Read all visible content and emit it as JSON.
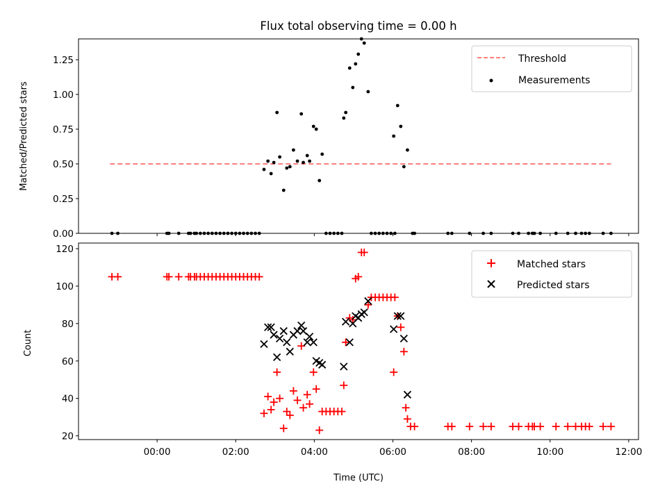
{
  "chart_data": [
    {
      "type": "scatter",
      "title": "Flux total observing time = 0.00 h",
      "ylabel": "Matched/Predicted stars",
      "xlim": [
        -2.0,
        12.25
      ],
      "ylim": [
        0,
        1.4
      ],
      "yticks": [
        0.0,
        0.25,
        0.5,
        0.75,
        1.0,
        1.25
      ],
      "ytick_labels": [
        "0.00",
        "0.25",
        "0.50",
        "0.75",
        "1.00",
        "1.25"
      ],
      "legend": {
        "position": "top-right",
        "entries": [
          "Threshold",
          "Measurements"
        ]
      },
      "series": [
        {
          "name": "Threshold",
          "style": "dashed-line",
          "color": "#ff7f7f",
          "points": [
            [
              -1.2,
              0.5
            ],
            [
              11.55,
              0.5
            ]
          ]
        },
        {
          "name": "Measurements",
          "style": "dot",
          "color": "#000000",
          "points": [
            [
              -1.15,
              0
            ],
            [
              -1.0,
              0
            ],
            [
              0.25,
              0
            ],
            [
              0.3,
              0
            ],
            [
              0.55,
              0
            ],
            [
              0.8,
              0
            ],
            [
              0.85,
              0
            ],
            [
              0.95,
              0
            ],
            [
              1.0,
              0
            ],
            [
              1.1,
              0
            ],
            [
              1.2,
              0
            ],
            [
              1.3,
              0
            ],
            [
              1.4,
              0
            ],
            [
              1.5,
              0
            ],
            [
              1.6,
              0
            ],
            [
              1.7,
              0
            ],
            [
              1.8,
              0
            ],
            [
              1.9,
              0
            ],
            [
              2.0,
              0
            ],
            [
              2.1,
              0
            ],
            [
              2.2,
              0
            ],
            [
              2.3,
              0
            ],
            [
              2.4,
              0
            ],
            [
              2.5,
              0
            ],
            [
              2.6,
              0
            ],
            [
              2.72,
              0.46
            ],
            [
              2.82,
              0.52
            ],
            [
              2.9,
              0.43
            ],
            [
              2.97,
              0.51
            ],
            [
              3.05,
              0.87
            ],
            [
              3.12,
              0.55
            ],
            [
              3.22,
              0.31
            ],
            [
              3.3,
              0.47
            ],
            [
              3.38,
              0.48
            ],
            [
              3.47,
              0.6
            ],
            [
              3.57,
              0.52
            ],
            [
              3.67,
              0.86
            ],
            [
              3.72,
              0.51
            ],
            [
              3.82,
              0.56
            ],
            [
              3.88,
              0.52
            ],
            [
              3.98,
              0.77
            ],
            [
              4.05,
              0.75
            ],
            [
              4.13,
              0.38
            ],
            [
              4.2,
              0.57
            ],
            [
              4.3,
              0
            ],
            [
              4.4,
              0
            ],
            [
              4.5,
              0
            ],
            [
              4.6,
              0
            ],
            [
              4.7,
              0
            ],
            [
              4.75,
              0.83
            ],
            [
              4.8,
              0.87
            ],
            [
              4.9,
              1.19
            ],
            [
              4.98,
              1.05
            ],
            [
              5.05,
              1.22
            ],
            [
              5.12,
              1.29
            ],
            [
              5.2,
              1.4
            ],
            [
              5.27,
              1.37
            ],
            [
              5.37,
              1.02
            ],
            [
              5.45,
              0
            ],
            [
              5.55,
              0
            ],
            [
              5.65,
              0
            ],
            [
              5.75,
              0
            ],
            [
              5.85,
              0
            ],
            [
              5.95,
              0
            ],
            [
              6.05,
              0
            ],
            [
              6.02,
              0.7
            ],
            [
              6.12,
              0.92
            ],
            [
              6.2,
              0.77
            ],
            [
              6.28,
              0.48
            ],
            [
              6.37,
              0.6
            ],
            [
              6.5,
              0
            ],
            [
              6.55,
              0
            ],
            [
              7.4,
              0
            ],
            [
              7.5,
              0
            ],
            [
              7.95,
              0
            ],
            [
              8.3,
              0
            ],
            [
              8.5,
              0
            ],
            [
              9.05,
              0
            ],
            [
              9.2,
              0
            ],
            [
              9.45,
              0
            ],
            [
              9.55,
              0
            ],
            [
              9.6,
              0
            ],
            [
              9.75,
              0
            ],
            [
              10.15,
              0
            ],
            [
              10.45,
              0
            ],
            [
              10.65,
              0
            ],
            [
              10.8,
              0
            ],
            [
              10.9,
              0
            ],
            [
              11.0,
              0
            ],
            [
              11.35,
              0
            ],
            [
              11.55,
              0
            ]
          ]
        }
      ]
    },
    {
      "type": "scatter",
      "xlabel": "Time (UTC)",
      "ylabel": "Count",
      "xlim": [
        -2.0,
        12.25
      ],
      "ylim": [
        18,
        123
      ],
      "xticks": [
        0,
        2,
        4,
        6,
        8,
        10,
        12
      ],
      "xtick_labels": [
        "00:00",
        "02:00",
        "04:00",
        "06:00",
        "08:00",
        "10:00",
        "12:00"
      ],
      "yticks": [
        20,
        40,
        60,
        80,
        100,
        120
      ],
      "ytick_labels": [
        "20",
        "40",
        "60",
        "80",
        "100",
        "120"
      ],
      "legend": {
        "position": "top-right",
        "entries": [
          "Matched stars",
          "Predicted stars"
        ]
      },
      "series": [
        {
          "name": "Matched stars",
          "style": "plus",
          "color": "#ff0000",
          "points": [
            [
              -1.15,
              105
            ],
            [
              -1.0,
              105
            ],
            [
              0.25,
              105
            ],
            [
              0.3,
              105
            ],
            [
              0.55,
              105
            ],
            [
              0.8,
              105
            ],
            [
              0.85,
              105
            ],
            [
              0.95,
              105
            ],
            [
              1.0,
              105
            ],
            [
              1.1,
              105
            ],
            [
              1.2,
              105
            ],
            [
              1.3,
              105
            ],
            [
              1.4,
              105
            ],
            [
              1.5,
              105
            ],
            [
              1.6,
              105
            ],
            [
              1.7,
              105
            ],
            [
              1.8,
              105
            ],
            [
              1.9,
              105
            ],
            [
              2.0,
              105
            ],
            [
              2.1,
              105
            ],
            [
              2.2,
              105
            ],
            [
              2.3,
              105
            ],
            [
              2.4,
              105
            ],
            [
              2.5,
              105
            ],
            [
              2.6,
              105
            ],
            [
              2.72,
              32
            ],
            [
              2.82,
              41
            ],
            [
              2.9,
              34
            ],
            [
              2.97,
              38
            ],
            [
              3.05,
              54
            ],
            [
              3.12,
              40
            ],
            [
              3.22,
              24
            ],
            [
              3.3,
              33
            ],
            [
              3.38,
              31
            ],
            [
              3.47,
              44
            ],
            [
              3.57,
              39
            ],
            [
              3.67,
              68
            ],
            [
              3.72,
              35
            ],
            [
              3.82,
              42
            ],
            [
              3.88,
              37
            ],
            [
              3.98,
              54
            ],
            [
              4.05,
              45
            ],
            [
              4.13,
              23
            ],
            [
              4.2,
              33
            ],
            [
              4.3,
              33
            ],
            [
              4.4,
              33
            ],
            [
              4.5,
              33
            ],
            [
              4.6,
              33
            ],
            [
              4.7,
              33
            ],
            [
              4.75,
              47
            ],
            [
              4.8,
              70
            ],
            [
              4.9,
              83
            ],
            [
              4.98,
              82
            ],
            [
              5.05,
              104
            ],
            [
              5.12,
              105
            ],
            [
              5.2,
              118
            ],
            [
              5.27,
              118
            ],
            [
              5.37,
              90
            ],
            [
              5.45,
              94
            ],
            [
              5.55,
              94
            ],
            [
              5.65,
              94
            ],
            [
              5.75,
              94
            ],
            [
              5.85,
              94
            ],
            [
              5.95,
              94
            ],
            [
              6.05,
              94
            ],
            [
              6.02,
              54
            ],
            [
              6.12,
              84
            ],
            [
              6.2,
              78
            ],
            [
              6.28,
              65
            ],
            [
              6.33,
              35
            ],
            [
              6.37,
              29
            ],
            [
              6.45,
              25
            ],
            [
              6.55,
              25
            ],
            [
              7.4,
              25
            ],
            [
              7.5,
              25
            ],
            [
              7.95,
              25
            ],
            [
              8.3,
              25
            ],
            [
              8.5,
              25
            ],
            [
              9.05,
              25
            ],
            [
              9.2,
              25
            ],
            [
              9.45,
              25
            ],
            [
              9.55,
              25
            ],
            [
              9.6,
              25
            ],
            [
              9.75,
              25
            ],
            [
              10.15,
              25
            ],
            [
              10.45,
              25
            ],
            [
              10.65,
              25
            ],
            [
              10.8,
              25
            ],
            [
              10.9,
              25
            ],
            [
              11.0,
              25
            ],
            [
              11.35,
              25
            ],
            [
              11.55,
              25
            ]
          ]
        },
        {
          "name": "Predicted stars",
          "style": "x",
          "color": "#000000",
          "points": [
            [
              2.72,
              69
            ],
            [
              2.82,
              78
            ],
            [
              2.9,
              78
            ],
            [
              2.97,
              74
            ],
            [
              3.05,
              62
            ],
            [
              3.12,
              72
            ],
            [
              3.22,
              76
            ],
            [
              3.3,
              70
            ],
            [
              3.38,
              65
            ],
            [
              3.47,
              74
            ],
            [
              3.57,
              76
            ],
            [
              3.67,
              79
            ],
            [
              3.72,
              76
            ],
            [
              3.82,
              70
            ],
            [
              3.88,
              73
            ],
            [
              3.98,
              70
            ],
            [
              4.05,
              60
            ],
            [
              4.13,
              59
            ],
            [
              4.2,
              58
            ],
            [
              4.75,
              57
            ],
            [
              4.8,
              81
            ],
            [
              4.9,
              70
            ],
            [
              4.98,
              80
            ],
            [
              5.05,
              84
            ],
            [
              5.12,
              83
            ],
            [
              5.2,
              85
            ],
            [
              5.27,
              86
            ],
            [
              5.37,
              92
            ],
            [
              6.02,
              77
            ],
            [
              6.12,
              84
            ],
            [
              6.2,
              84
            ],
            [
              6.28,
              72
            ],
            [
              6.37,
              42
            ]
          ]
        }
      ]
    }
  ]
}
